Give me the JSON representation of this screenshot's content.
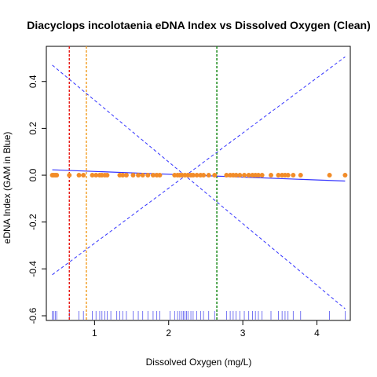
{
  "chart_data": {
    "type": "scatter",
    "title": "Diacyclops incolotaenia eDNA Index vs Dissolved Oxygen (Clean)",
    "xlabel": "Dissolved Oxygen (mg/L)",
    "ylabel": "eDNA Index (GAM in Blue)",
    "xlim": [
      0.35,
      4.45
    ],
    "ylim": [
      -0.62,
      0.55
    ],
    "x_ticks": [
      1,
      2,
      3,
      4
    ],
    "y_ticks": [
      -0.6,
      -0.4,
      -0.2,
      0.0,
      0.2,
      0.4
    ],
    "x_tick_labels": [
      "1",
      "2",
      "3",
      "4"
    ],
    "y_tick_labels": [
      "-0.6",
      "-0.4",
      "-0.2",
      "0.0",
      "0.2",
      "0.4"
    ],
    "points": {
      "color": "#F28C28",
      "x": [
        0.43,
        0.45,
        0.47,
        0.49,
        0.66,
        0.79,
        0.85,
        0.97,
        1.02,
        1.07,
        1.1,
        1.14,
        1.17,
        1.34,
        1.38,
        1.43,
        1.52,
        1.59,
        1.65,
        1.72,
        1.79,
        1.84,
        1.88,
        2.08,
        2.12,
        2.15,
        2.18,
        2.22,
        2.26,
        2.3,
        2.33,
        2.38,
        2.43,
        2.47,
        2.54,
        2.62,
        2.78,
        2.83,
        2.87,
        2.91,
        2.96,
        3.02,
        3.08,
        3.13,
        3.17,
        3.21,
        3.26,
        3.38,
        3.48,
        3.53,
        3.57,
        3.61,
        3.68,
        3.78,
        4.17,
        4.38
      ],
      "y": [
        0,
        0,
        0,
        0,
        0,
        0,
        0,
        0,
        0,
        0,
        0,
        0,
        0,
        0,
        0,
        0,
        0,
        0,
        0,
        0,
        0,
        0,
        0,
        0,
        0,
        0,
        0,
        0,
        0,
        0,
        0,
        0,
        0,
        0,
        0,
        0,
        0,
        0,
        0,
        0,
        0,
        0,
        0,
        0,
        0,
        0,
        0,
        0,
        0,
        0,
        0,
        0,
        0,
        0,
        0,
        0
      ]
    },
    "gam_fit": {
      "color": "#3333FF",
      "x": [
        0.43,
        4.38
      ],
      "y": [
        0.023,
        -0.025
      ]
    },
    "confidence_band": {
      "color": "#3333FF",
      "upper": {
        "x": [
          0.43,
          4.38
        ],
        "y": [
          -0.425,
          0.505
        ]
      },
      "lower": {
        "x": [
          0.43,
          4.38
        ],
        "y": [
          0.47,
          -0.57
        ]
      }
    },
    "vertical_lines": [
      {
        "x": 0.66,
        "color": "#E8211D"
      },
      {
        "x": 0.89,
        "color": "#F2A12C"
      },
      {
        "x": 2.65,
        "color": "#1A8A1A"
      }
    ],
    "rug": {
      "color": "#5555EE",
      "x": [
        0.43,
        0.45,
        0.47,
        0.49,
        0.66,
        0.79,
        0.85,
        0.97,
        1.02,
        1.07,
        1.1,
        1.14,
        1.17,
        1.22,
        1.3,
        1.34,
        1.38,
        1.43,
        1.52,
        1.59,
        1.65,
        1.72,
        1.79,
        1.84,
        1.88,
        2.02,
        2.08,
        2.12,
        2.15,
        2.18,
        2.2,
        2.22,
        2.24,
        2.26,
        2.3,
        2.33,
        2.38,
        2.43,
        2.47,
        2.54,
        2.62,
        2.78,
        2.83,
        2.87,
        2.91,
        2.96,
        3.02,
        3.08,
        3.13,
        3.17,
        3.21,
        3.26,
        3.38,
        3.48,
        3.53,
        3.57,
        3.61,
        3.68,
        3.78,
        4.17,
        4.38
      ]
    },
    "grid": false
  }
}
